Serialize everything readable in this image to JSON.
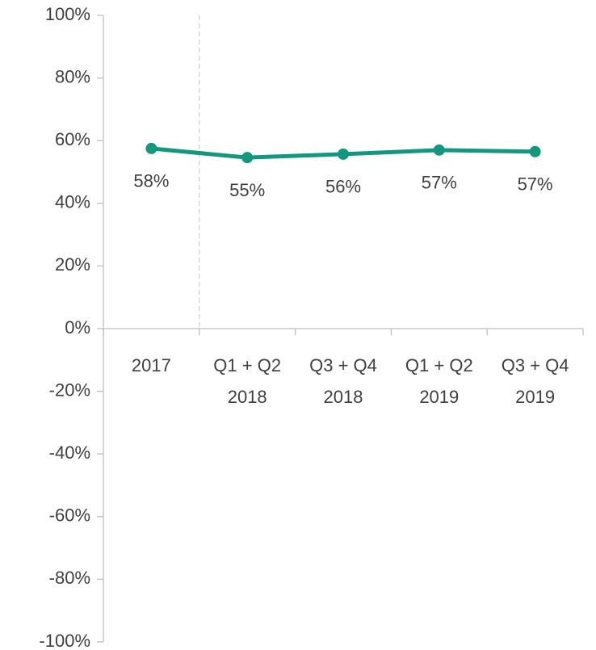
{
  "chart_data": {
    "type": "line",
    "categories": [
      [
        "2017"
      ],
      [
        "Q1 + Q2",
        "2018"
      ],
      [
        "Q3 + Q4",
        "2018"
      ],
      [
        "Q1 + Q2",
        "2019"
      ],
      [
        "Q3 + Q4",
        "2019"
      ]
    ],
    "series": [
      {
        "color": "#13977f",
        "values": [
          57.5,
          54.6,
          55.7,
          57,
          56.5
        ],
        "value_labels": [
          "58%",
          "55%",
          "56%",
          "57%",
          "57%"
        ]
      }
    ],
    "ylim": [
      -100,
      100
    ],
    "yticks": [
      {
        "value": -100,
        "label": "-100%"
      },
      {
        "value": -80,
        "label": "-80%"
      },
      {
        "value": -60,
        "label": "-60%"
      },
      {
        "value": -40,
        "label": "-40%"
      },
      {
        "value": -20,
        "label": "-20%"
      },
      {
        "value": 0,
        "label": "0%"
      },
      {
        "value": 20,
        "label": "20%"
      },
      {
        "value": 40,
        "label": "40%"
      },
      {
        "value": 60,
        "label": "60%"
      },
      {
        "value": 80,
        "label": "80%"
      },
      {
        "value": 100,
        "label": "100%"
      }
    ],
    "grid": false
  }
}
